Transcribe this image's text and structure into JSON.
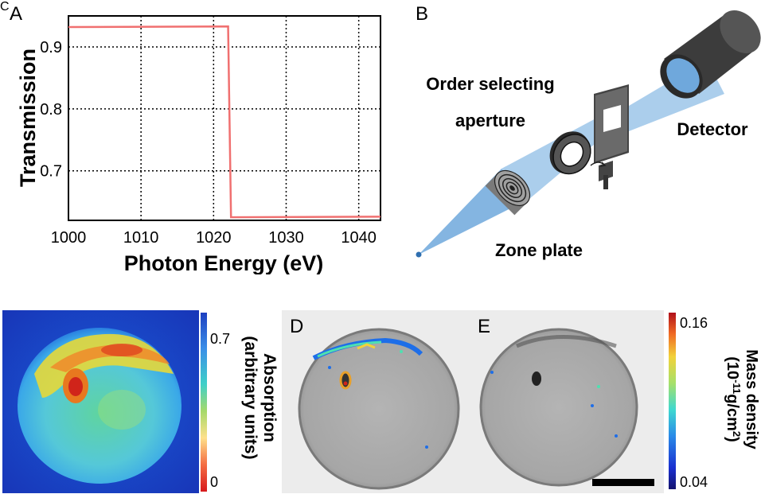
{
  "panels": {
    "a": {
      "letter": "A"
    },
    "b": {
      "letter": "B"
    },
    "c": {
      "letter": "C"
    },
    "d": {
      "letter": "D"
    },
    "e": {
      "letter": "E"
    }
  },
  "chart_data": {
    "type": "line",
    "xlabel": "Photon Energy (eV)",
    "ylabel": "Transmission",
    "xlim": [
      1000,
      1043
    ],
    "ylim": [
      0.62,
      0.95
    ],
    "xticks": [
      1000,
      1010,
      1020,
      1030,
      1040
    ],
    "yticks": [
      0.7,
      0.8,
      0.9
    ],
    "ytick_labels": [
      "0.7",
      "0.8",
      "0.9"
    ],
    "grid": true,
    "series": [
      {
        "color": "#f07070",
        "x": [
          1000,
          1022,
          1022.4,
          1043
        ],
        "y": [
          0.932,
          0.933,
          0.625,
          0.626
        ]
      }
    ]
  },
  "diagram": {
    "order_selecting_aperture_line1": "Order selecting",
    "order_selecting_aperture_line2": "aperture",
    "detector": "Detector",
    "zone_plate": "Zone plate"
  },
  "colorbar_c": {
    "label_line1": "Absorption",
    "label_line2": "(arbitrary units)",
    "tick_max": "0.7",
    "tick_min": "0"
  },
  "colorbar_de": {
    "label_line1": "Mass density",
    "label_line2_pre": "(10",
    "label_line2_sup1": "-11",
    "label_line2_mid": "g/cm",
    "label_line2_sup2": "2",
    "label_line2_post": ")",
    "tick_max": "0.16",
    "tick_min": "0.04"
  },
  "colors": {
    "beam": "#6fa8dc",
    "curve": "#f07070",
    "cylinder": "#3c3c3c"
  }
}
